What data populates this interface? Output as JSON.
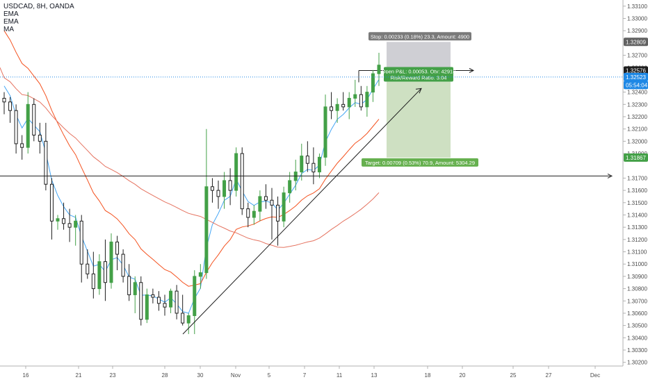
{
  "chart_data": {
    "type": "candlestick",
    "title": "USDCAD, 8H, OANDA",
    "indicators": [
      {
        "label": "EMA",
        "color": "#2196f3"
      },
      {
        "label": "EMA",
        "color": "#f4511e"
      },
      {
        "label": "MA",
        "color": "#e65100"
      }
    ],
    "colors": {
      "up": "#43a047",
      "down": "#1e1e1e",
      "ema_fast": "#42a5f5",
      "ema_slow": "#f4511e",
      "ma": "#e57360"
    },
    "ylim": [
      1.3017,
      1.3315
    ],
    "y_ticks": [
      "1.33100",
      "1.33000",
      "1.32900",
      "1.32700",
      "1.32600",
      "1.32400",
      "1.32300",
      "1.32200",
      "1.32100",
      "1.32000",
      "1.31900",
      "1.31700",
      "1.31600",
      "1.31500",
      "1.31400",
      "1.31300",
      "1.31200",
      "1.31100",
      "1.31000",
      "1.30900",
      "1.30800",
      "1.30700",
      "1.30600",
      "1.30500",
      "1.30400",
      "1.30300",
      "1.30200"
    ],
    "x_ticks": [
      "16",
      "21",
      "23",
      "28",
      "30",
      "Nov",
      "5",
      "7",
      "11",
      "13",
      "18",
      "20",
      "25",
      "27",
      "Dec"
    ],
    "price_labels": [
      {
        "text": "1.32809",
        "value": 1.32809,
        "color": "#616161"
      },
      {
        "text": "1.32576",
        "value": 1.32576,
        "color": "#1e1e1e"
      },
      {
        "text": "1.32523",
        "value": 1.32523,
        "color": "#1e88e5"
      },
      {
        "text": "05:54:04",
        "value": 1.32458,
        "color": "#1e88e5"
      },
      {
        "text": "1.31867",
        "value": 1.31867,
        "color": "#43a047"
      }
    ],
    "horizontal_line": 1.31717,
    "position": {
      "stop_label": "Stop: 0.00233 (0.18%) 23.3, Amount: 4900",
      "open_label": "Open P&L: 0.00053, Qty: 42918",
      "ratio_label": "Risk/Reward Ratio: 3.04",
      "target_label": "Target: 0.00709 (0.53%) 70.9, Amount: 5304.29",
      "entry": 1.32576,
      "stop": 1.32809,
      "target": 1.31867
    },
    "candles": [
      {
        "o": 1.3235,
        "h": 1.324,
        "l": 1.3222,
        "c": 1.3232
      },
      {
        "o": 1.3232,
        "h": 1.3236,
        "l": 1.3215,
        "c": 1.3225
      },
      {
        "o": 1.3225,
        "h": 1.323,
        "l": 1.319,
        "c": 1.3198
      },
      {
        "o": 1.3198,
        "h": 1.3205,
        "l": 1.3185,
        "c": 1.3195
      },
      {
        "o": 1.3195,
        "h": 1.324,
        "l": 1.319,
        "c": 1.323
      },
      {
        "o": 1.323,
        "h": 1.3235,
        "l": 1.32,
        "c": 1.3205
      },
      {
        "o": 1.3205,
        "h": 1.3215,
        "l": 1.319,
        "c": 1.32
      },
      {
        "o": 1.32,
        "h": 1.3215,
        "l": 1.316,
        "c": 1.3165
      },
      {
        "o": 1.3165,
        "h": 1.317,
        "l": 1.312,
        "c": 1.3135
      },
      {
        "o": 1.3135,
        "h": 1.314,
        "l": 1.3128,
        "c": 1.3137
      },
      {
        "o": 1.3137,
        "h": 1.315,
        "l": 1.3128,
        "c": 1.3133
      },
      {
        "o": 1.3133,
        "h": 1.3145,
        "l": 1.3118,
        "c": 1.313
      },
      {
        "o": 1.313,
        "h": 1.314,
        "l": 1.3115,
        "c": 1.3135
      },
      {
        "o": 1.3135,
        "h": 1.314,
        "l": 1.3085,
        "c": 1.31
      },
      {
        "o": 1.31,
        "h": 1.3112,
        "l": 1.3088,
        "c": 1.3092
      },
      {
        "o": 1.3092,
        "h": 1.311,
        "l": 1.3072,
        "c": 1.308
      },
      {
        "o": 1.308,
        "h": 1.3108,
        "l": 1.3075,
        "c": 1.3102
      },
      {
        "o": 1.3102,
        "h": 1.312,
        "l": 1.307,
        "c": 1.3085
      },
      {
        "o": 1.3085,
        "h": 1.3125,
        "l": 1.308,
        "c": 1.3118
      },
      {
        "o": 1.3118,
        "h": 1.3123,
        "l": 1.3095,
        "c": 1.3108
      },
      {
        "o": 1.3108,
        "h": 1.3112,
        "l": 1.3085,
        "c": 1.309
      },
      {
        "o": 1.309,
        "h": 1.31,
        "l": 1.307,
        "c": 1.3075
      },
      {
        "o": 1.3075,
        "h": 1.309,
        "l": 1.306,
        "c": 1.3085
      },
      {
        "o": 1.3085,
        "h": 1.309,
        "l": 1.305,
        "c": 1.3055
      },
      {
        "o": 1.3055,
        "h": 1.308,
        "l": 1.3052,
        "c": 1.3075
      },
      {
        "o": 1.3075,
        "h": 1.308,
        "l": 1.3068,
        "c": 1.3073
      },
      {
        "o": 1.3073,
        "h": 1.3078,
        "l": 1.3062,
        "c": 1.3068
      },
      {
        "o": 1.3068,
        "h": 1.3075,
        "l": 1.3058,
        "c": 1.3065
      },
      {
        "o": 1.3065,
        "h": 1.308,
        "l": 1.306,
        "c": 1.3078
      },
      {
        "o": 1.3078,
        "h": 1.3083,
        "l": 1.3055,
        "c": 1.306
      },
      {
        "o": 1.306,
        "h": 1.3075,
        "l": 1.305,
        "c": 1.3052
      },
      {
        "o": 1.3052,
        "h": 1.306,
        "l": 1.3043,
        "c": 1.3058
      },
      {
        "o": 1.3058,
        "h": 1.3095,
        "l": 1.3043,
        "c": 1.309
      },
      {
        "o": 1.309,
        "h": 1.31,
        "l": 1.308,
        "c": 1.3093
      },
      {
        "o": 1.3093,
        "h": 1.321,
        "l": 1.3088,
        "c": 1.3163
      },
      {
        "o": 1.3163,
        "h": 1.317,
        "l": 1.315,
        "c": 1.316
      },
      {
        "o": 1.316,
        "h": 1.3168,
        "l": 1.3145,
        "c": 1.3155
      },
      {
        "o": 1.3155,
        "h": 1.3175,
        "l": 1.3145,
        "c": 1.3168
      },
      {
        "o": 1.3168,
        "h": 1.3178,
        "l": 1.3148,
        "c": 1.316
      },
      {
        "o": 1.316,
        "h": 1.3195,
        "l": 1.3155,
        "c": 1.319
      },
      {
        "o": 1.319,
        "h": 1.3195,
        "l": 1.314,
        "c": 1.3145
      },
      {
        "o": 1.3145,
        "h": 1.315,
        "l": 1.313,
        "c": 1.3138
      },
      {
        "o": 1.3138,
        "h": 1.3148,
        "l": 1.3132,
        "c": 1.3143
      },
      {
        "o": 1.3143,
        "h": 1.316,
        "l": 1.3135,
        "c": 1.3155
      },
      {
        "o": 1.3155,
        "h": 1.3165,
        "l": 1.3145,
        "c": 1.3152
      },
      {
        "o": 1.3152,
        "h": 1.3162,
        "l": 1.312,
        "c": 1.3148
      },
      {
        "o": 1.3148,
        "h": 1.3155,
        "l": 1.3115,
        "c": 1.3135
      },
      {
        "o": 1.3135,
        "h": 1.3163,
        "l": 1.313,
        "c": 1.3158
      },
      {
        "o": 1.3158,
        "h": 1.3175,
        "l": 1.315,
        "c": 1.3168
      },
      {
        "o": 1.3168,
        "h": 1.3185,
        "l": 1.316,
        "c": 1.3175
      },
      {
        "o": 1.3175,
        "h": 1.3198,
        "l": 1.3168,
        "c": 1.3188
      },
      {
        "o": 1.3188,
        "h": 1.32,
        "l": 1.3175,
        "c": 1.3182
      },
      {
        "o": 1.3182,
        "h": 1.3195,
        "l": 1.3165,
        "c": 1.3175
      },
      {
        "o": 1.3175,
        "h": 1.319,
        "l": 1.317,
        "c": 1.3187
      },
      {
        "o": 1.3187,
        "h": 1.3238,
        "l": 1.318,
        "c": 1.3228
      },
      {
        "o": 1.3228,
        "h": 1.324,
        "l": 1.3218,
        "c": 1.3225
      },
      {
        "o": 1.3225,
        "h": 1.3235,
        "l": 1.3215,
        "c": 1.323
      },
      {
        "o": 1.323,
        "h": 1.324,
        "l": 1.3225,
        "c": 1.3228
      },
      {
        "o": 1.3228,
        "h": 1.324,
        "l": 1.3218,
        "c": 1.3235
      },
      {
        "o": 1.3235,
        "h": 1.325,
        "l": 1.3228,
        "c": 1.3238
      },
      {
        "o": 1.3238,
        "h": 1.3245,
        "l": 1.3225,
        "c": 1.3228
      },
      {
        "o": 1.3228,
        "h": 1.3245,
        "l": 1.322,
        "c": 1.324
      },
      {
        "o": 1.324,
        "h": 1.3258,
        "l": 1.3232,
        "c": 1.3255
      },
      {
        "o": 1.3255,
        "h": 1.3272,
        "l": 1.3245,
        "c": 1.3262
      }
    ]
  }
}
